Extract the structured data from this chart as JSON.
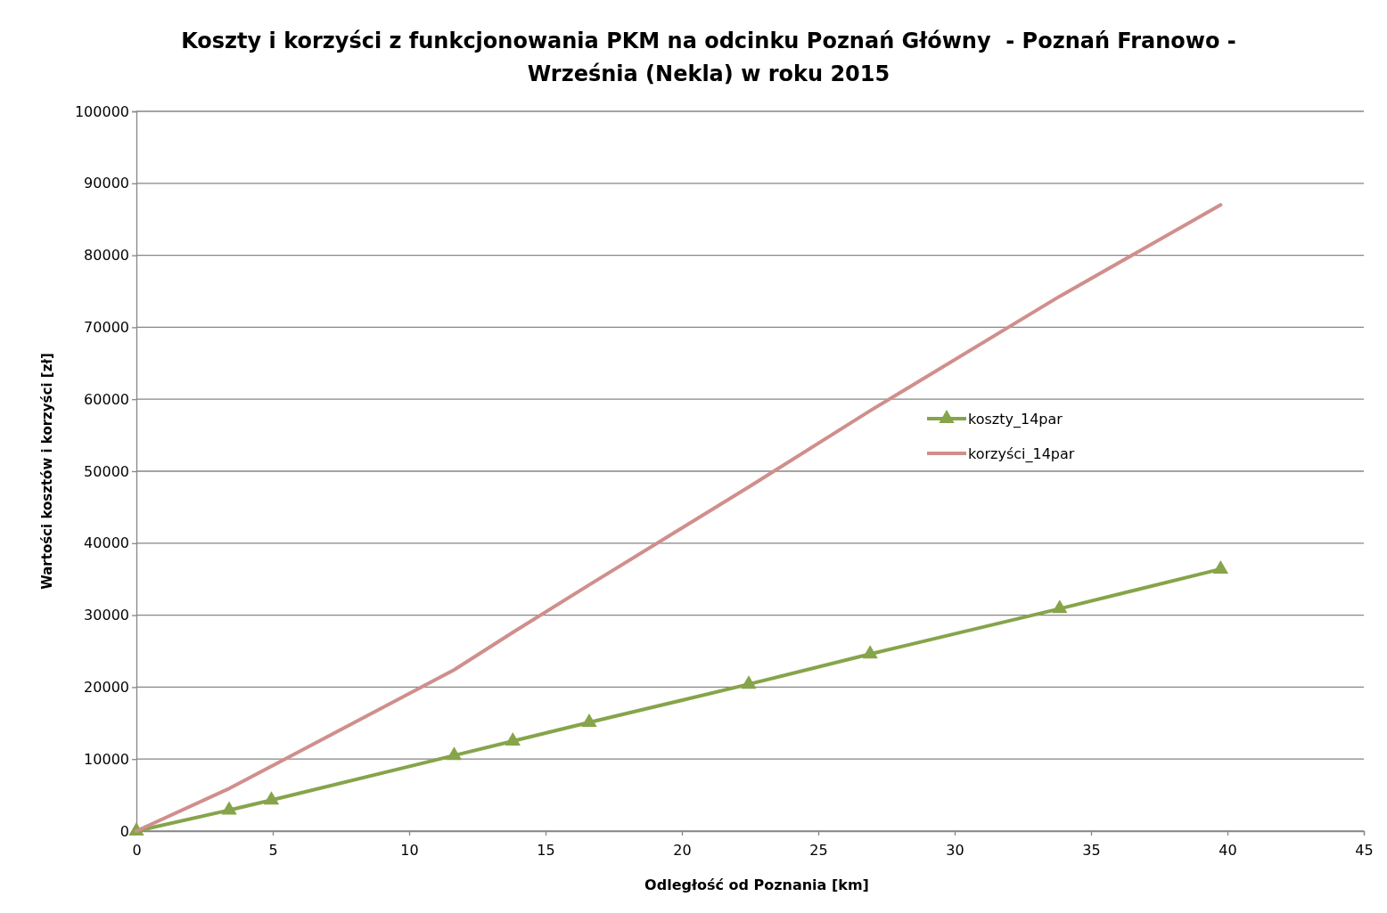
{
  "chart_data": {
    "type": "line",
    "title": "Koszty i korzyści z funkcjonowania PKM na odcinku Poznań Główny  - Poznań Franowo - Września (Nekla) w roku 2015",
    "xlabel": "Odległość od Poznania  [km]",
    "ylabel": "Wartości kosztów  i korzyści [zł]",
    "x": [
      0,
      3.4,
      4.95,
      11.65,
      13.8,
      16.6,
      22.45,
      26.9,
      33.85,
      39.75
    ],
    "series": [
      {
        "name": "koszty_14par",
        "color": "#86a44a",
        "marker": "triangle",
        "values": [
          0,
          2900,
          4300,
          10500,
          12500,
          15100,
          20400,
          24600,
          30900,
          36400
        ]
      },
      {
        "name": "korzyści_14par",
        "color": "#d08f8c",
        "marker": "none",
        "values": [
          0,
          5900,
          9000,
          22400,
          27600,
          34200,
          47800,
          58400,
          74300,
          87000
        ]
      }
    ],
    "xlim": [
      0,
      45
    ],
    "xticks": [
      0,
      5,
      10,
      15,
      20,
      25,
      30,
      35,
      40,
      45
    ],
    "ylim": [
      0,
      100000
    ],
    "yticks": [
      0,
      10000,
      20000,
      30000,
      40000,
      50000,
      60000,
      70000,
      80000,
      90000,
      100000
    ],
    "grid": "y",
    "legend": "right",
    "line_style": "solid"
  }
}
